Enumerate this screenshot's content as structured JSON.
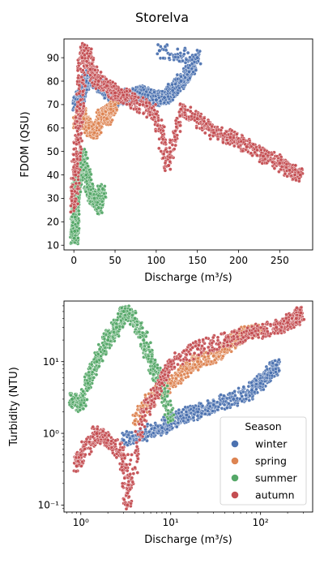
{
  "figure": {
    "title": "Storelva"
  },
  "chart_data": [
    {
      "type": "scatter",
      "xlabel": "Discharge (m³/s)",
      "ylabel": "FDOM (QSU)",
      "xlim": [
        -12,
        290
      ],
      "ylim": [
        8,
        98
      ],
      "xscale": "linear",
      "yscale": "linear",
      "x_ticks": [
        0,
        50,
        100,
        150,
        200,
        250
      ],
      "x_tick_labels": [
        "0",
        "50",
        "100",
        "150",
        "200",
        "250"
      ],
      "y_ticks": [
        10,
        20,
        30,
        40,
        50,
        60,
        70,
        80,
        90
      ],
      "y_tick_labels": [
        "10",
        "20",
        "30",
        "40",
        "50",
        "60",
        "70",
        "80",
        "90"
      ],
      "grid": false,
      "legend": false,
      "hue": "Season",
      "series": [
        {
          "name": "winter",
          "color": "#4c72b0",
          "x": [
            2,
            5,
            10,
            15,
            20,
            30,
            40,
            50,
            60,
            70,
            80,
            90,
            100,
            110,
            120,
            130,
            140,
            150,
            104
          ],
          "y": [
            70,
            72,
            75,
            80,
            82,
            78,
            76,
            72,
            74,
            73,
            75,
            74,
            72,
            73,
            76,
            80,
            84,
            90,
            93
          ]
        },
        {
          "name": "spring",
          "color": "#dd8452",
          "x": [
            3,
            8,
            12,
            18,
            25,
            30,
            35,
            40,
            45,
            50
          ],
          "y": [
            62,
            66,
            64,
            60,
            58,
            62,
            66,
            64,
            68,
            70
          ]
        },
        {
          "name": "summer",
          "color": "#55a868",
          "x": [
            0.5,
            1,
            1.5,
            2,
            3,
            5,
            8,
            10,
            15,
            20,
            25,
            30,
            35
          ],
          "y": [
            13,
            16,
            22,
            30,
            35,
            38,
            42,
            48,
            40,
            32,
            30,
            26,
            34
          ]
        },
        {
          "name": "autumn",
          "color": "#c44e52",
          "x": [
            0.5,
            2,
            5,
            8,
            10,
            15,
            20,
            30,
            40,
            50,
            60,
            80,
            100,
            115,
            130,
            150,
            170,
            190,
            210,
            230,
            250,
            262,
            275
          ],
          "y": [
            26,
            40,
            55,
            70,
            90,
            94,
            85,
            80,
            78,
            75,
            74,
            70,
            66,
            44,
            68,
            64,
            58,
            56,
            52,
            48,
            45,
            42,
            40
          ]
        }
      ]
    },
    {
      "type": "scatter",
      "xlabel": "Discharge (m³/s)",
      "ylabel": "Turbidity (NTU)",
      "xlim": [
        0.65,
        380
      ],
      "ylim": [
        0.08,
        70
      ],
      "xscale": "log",
      "yscale": "log",
      "x_ticks": [
        1,
        10,
        100
      ],
      "x_tick_labels": [
        "10⁰",
        "10¹",
        "10²"
      ],
      "y_ticks": [
        0.1,
        1,
        10
      ],
      "y_tick_labels": [
        "10⁻¹",
        "10⁰",
        "10¹"
      ],
      "grid": false,
      "legend": true,
      "legend_position": "lower-right",
      "legend_title": "Season",
      "hue": "Season",
      "series": [
        {
          "name": "winter",
          "color": "#4c72b0",
          "x": [
            3,
            5,
            8,
            10,
            15,
            20,
            30,
            50,
            80,
            100,
            130,
            150
          ],
          "y": [
            0.8,
            1,
            1.2,
            1.5,
            1.8,
            2,
            2.5,
            3,
            4,
            5,
            7,
            9
          ]
        },
        {
          "name": "spring",
          "color": "#dd8452",
          "x": [
            4,
            6,
            10,
            15,
            20,
            30,
            40,
            50,
            70,
            100
          ],
          "y": [
            1.5,
            3,
            5,
            8,
            10,
            12,
            15,
            20,
            25,
            30
          ]
        },
        {
          "name": "summer",
          "color": "#55a868",
          "x": [
            0.8,
            1,
            1.2,
            1.5,
            2,
            2.5,
            3,
            4,
            5,
            6,
            8,
            10
          ],
          "y": [
            3,
            2.5,
            5,
            10,
            20,
            30,
            50,
            40,
            20,
            10,
            5,
            1.5
          ]
        },
        {
          "name": "autumn",
          "color": "#c44e52",
          "x": [
            0.9,
            1,
            1.5,
            2,
            3,
            3.3,
            5,
            8,
            10,
            20,
            40,
            80,
            150,
            200,
            250,
            280
          ],
          "y": [
            0.35,
            0.5,
            1,
            0.8,
            0.5,
            0.1,
            2,
            5,
            10,
            15,
            20,
            25,
            30,
            35,
            40,
            48
          ]
        }
      ]
    }
  ]
}
